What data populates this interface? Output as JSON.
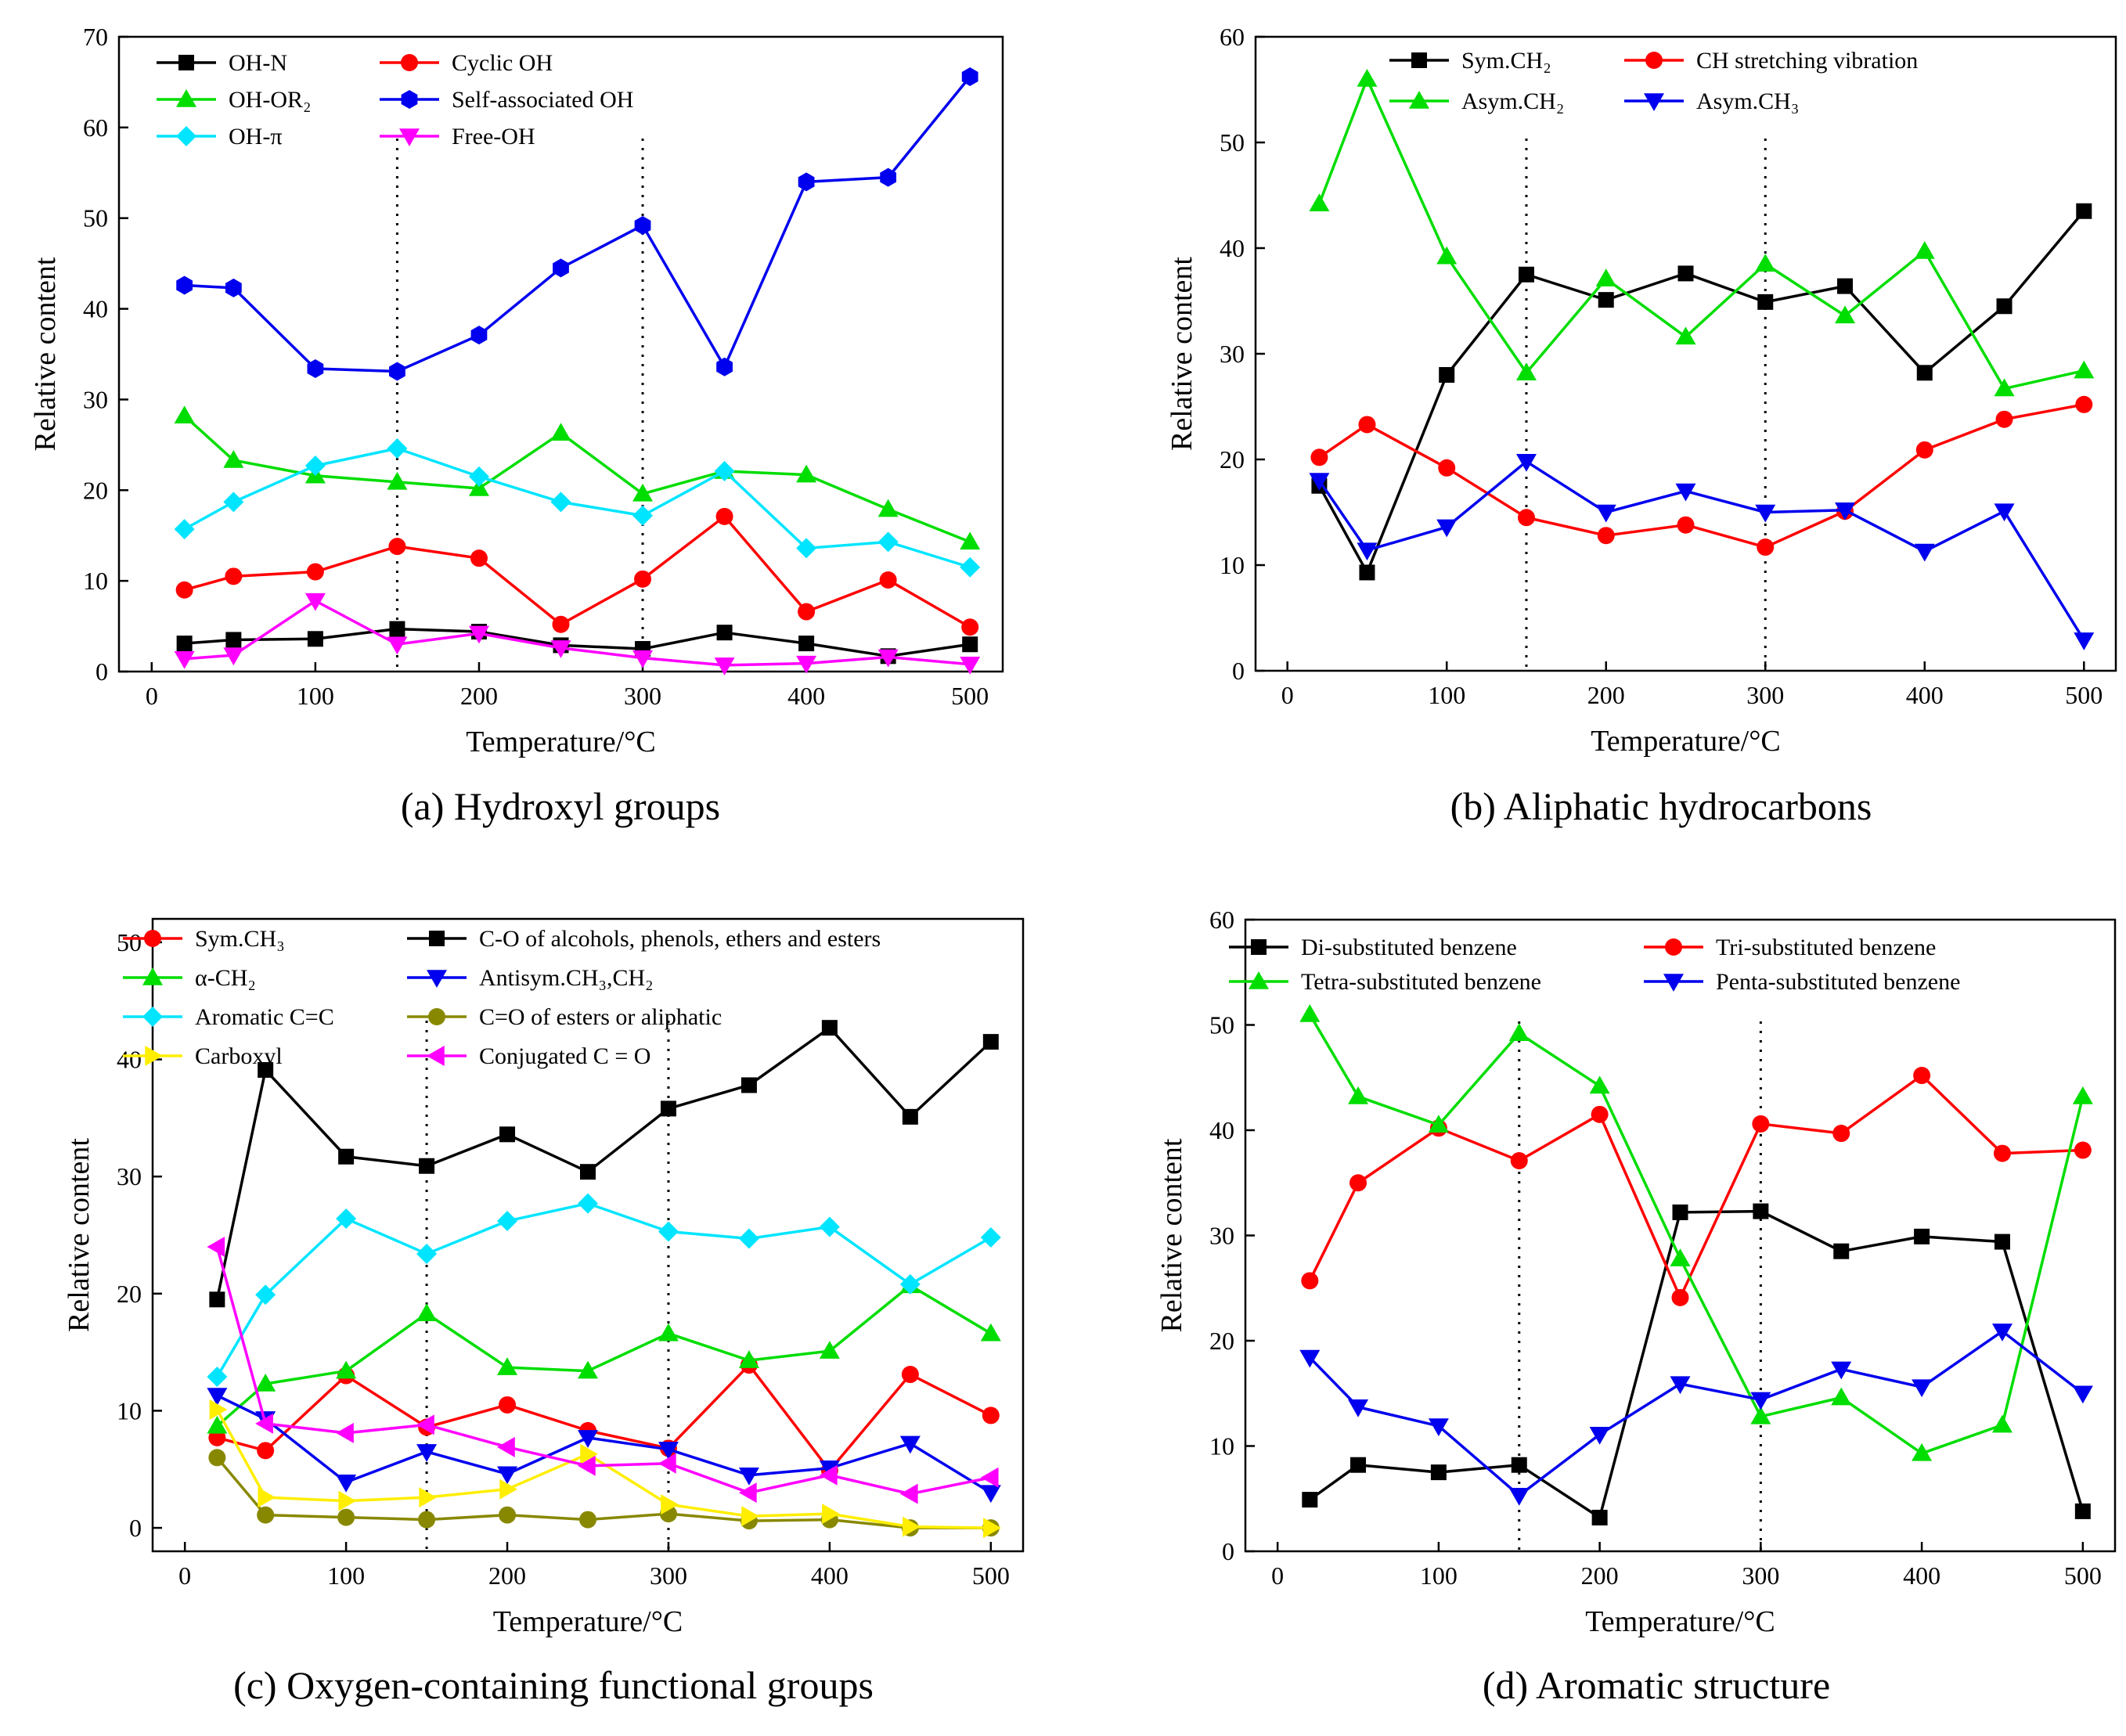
{
  "chart_data": [
    {
      "type": "line",
      "caption": "(a) Hydroxyl groups",
      "xlabel": "Temperature/°C",
      "ylabel": "Relative content",
      "xlim": [
        -20,
        520
      ],
      "ylim": [
        0,
        70
      ],
      "xticks": [
        0,
        100,
        200,
        300,
        400,
        500
      ],
      "yticks": [
        0,
        10,
        20,
        30,
        40,
        50,
        60,
        70
      ],
      "vlines": [
        150,
        300
      ],
      "legend_columns": 2,
      "x": [
        20,
        50,
        100,
        150,
        200,
        250,
        300,
        350,
        400,
        450,
        500
      ],
      "series": [
        {
          "name": "OH-N",
          "color": "#000000",
          "marker": "square",
          "values": [
            3.1,
            3.5,
            3.6,
            4.7,
            4.4,
            2.9,
            2.5,
            4.3,
            3.1,
            1.7,
            3.0
          ]
        },
        {
          "name": "Cyclic OH",
          "color": "#ff0000",
          "marker": "circle",
          "values": [
            9.0,
            10.5,
            11.0,
            13.8,
            12.5,
            5.2,
            10.2,
            17.1,
            6.6,
            10.1,
            4.9
          ]
        },
        {
          "name": "OH-OR₂",
          "color": "#00dd00",
          "marker": "triangle-up",
          "values": [
            28.2,
            23.3,
            21.6,
            20.9,
            20.2,
            26.3,
            19.6,
            22.1,
            21.7,
            17.9,
            14.3
          ]
        },
        {
          "name": "Self-associated OH",
          "color": "#0000ee",
          "marker": "hexagon",
          "values": [
            42.6,
            42.3,
            33.4,
            33.1,
            37.1,
            44.5,
            49.2,
            33.6,
            54.0,
            54.5,
            65.6
          ]
        },
        {
          "name": "OH-π",
          "color": "#00e5ff",
          "marker": "diamond",
          "values": [
            15.7,
            18.7,
            22.7,
            24.6,
            21.5,
            18.7,
            17.2,
            22.1,
            13.6,
            14.3,
            11.5
          ]
        },
        {
          "name": "Free-OH",
          "color": "#ff00ff",
          "marker": "triangle-down",
          "values": [
            1.4,
            1.8,
            7.8,
            3.0,
            4.2,
            2.6,
            1.5,
            0.7,
            0.9,
            1.6,
            0.8
          ]
        }
      ]
    },
    {
      "type": "line",
      "caption": "(b) Aliphatic hydrocarbons",
      "xlabel": "Temperature/°C",
      "ylabel": "Relative content",
      "xlim": [
        -20,
        520
      ],
      "ylim": [
        0,
        60
      ],
      "xticks": [
        0,
        100,
        200,
        300,
        400,
        500
      ],
      "yticks": [
        0,
        10,
        20,
        30,
        40,
        50,
        60
      ],
      "vlines": [
        150,
        300
      ],
      "legend_columns": 2,
      "x": [
        20,
        50,
        100,
        150,
        200,
        250,
        300,
        350,
        400,
        450,
        500
      ],
      "series": [
        {
          "name": "Sym.CH₂",
          "color": "#000000",
          "marker": "square",
          "values": [
            17.5,
            9.3,
            28.0,
            37.5,
            35.1,
            37.6,
            34.9,
            36.4,
            28.2,
            34.5,
            43.5
          ]
        },
        {
          "name": "CH stretching vibration",
          "color": "#ff0000",
          "marker": "circle",
          "values": [
            20.2,
            23.3,
            19.2,
            14.5,
            12.8,
            13.8,
            11.7,
            15.1,
            20.9,
            23.8,
            25.2
          ]
        },
        {
          "name": "Asym.CH₂",
          "color": "#00dd00",
          "marker": "triangle-up",
          "values": [
            44.2,
            56.0,
            39.2,
            28.2,
            37.1,
            31.6,
            38.5,
            33.6,
            39.7,
            26.7,
            28.4
          ]
        },
        {
          "name": "Asym.CH₃",
          "color": "#0000ee",
          "marker": "triangle-down",
          "values": [
            18.0,
            11.4,
            13.6,
            19.8,
            15.0,
            17.0,
            15.0,
            15.2,
            11.3,
            15.1,
            2.9
          ]
        }
      ]
    },
    {
      "type": "line",
      "caption": "(c) Oxygen-containing functional groups",
      "xlabel": "Temperature/°C",
      "ylabel": "Relative content",
      "xlim": [
        -20,
        520
      ],
      "ylim": [
        -2,
        52
      ],
      "xticks": [
        0,
        100,
        200,
        300,
        400,
        500
      ],
      "yticks": [
        0,
        10,
        20,
        30,
        40,
        50
      ],
      "vlines": [
        150,
        300
      ],
      "legend_columns": 2,
      "x": [
        20,
        50,
        100,
        150,
        200,
        250,
        300,
        350,
        400,
        450,
        500
      ],
      "series": [
        {
          "name": "Sym.CH₃",
          "color": "#ff0000",
          "marker": "circle",
          "values": [
            7.7,
            6.6,
            13.0,
            8.6,
            10.5,
            8.3,
            6.8,
            13.9,
            4.9,
            13.1,
            9.6
          ]
        },
        {
          "name": "C-O of alcohols, phenols, ethers and esters",
          "color": "#000000",
          "marker": "square",
          "values": [
            19.5,
            39.1,
            31.7,
            30.9,
            33.6,
            30.4,
            35.8,
            37.8,
            42.7,
            35.1,
            41.5
          ]
        },
        {
          "name": "α-CH₂",
          "color": "#00dd00",
          "marker": "triangle-up",
          "values": [
            8.7,
            12.3,
            13.4,
            18.3,
            13.7,
            13.4,
            16.6,
            14.3,
            15.1,
            20.7,
            16.6
          ]
        },
        {
          "name": "Antisym.CH₃,CH₂",
          "color": "#0000ee",
          "marker": "triangle-down",
          "values": [
            11.3,
            9.3,
            3.9,
            6.5,
            4.6,
            7.7,
            6.7,
            4.5,
            5.1,
            7.2,
            3.0
          ]
        },
        {
          "name": "Aromatic C=C",
          "color": "#00e5ff",
          "marker": "diamond",
          "values": [
            12.9,
            19.9,
            26.4,
            23.4,
            26.2,
            27.7,
            25.3,
            24.7,
            25.7,
            20.8,
            24.8
          ]
        },
        {
          "name": "C=O of esters or aliphatic",
          "color": "#888800",
          "marker": "circle",
          "values": [
            6.0,
            1.1,
            0.9,
            0.7,
            1.1,
            0.7,
            1.2,
            0.6,
            0.7,
            0.0,
            0.0
          ]
        },
        {
          "name": "Carboxyl",
          "color": "#ffee00",
          "marker": "triangle-right",
          "values": [
            10.1,
            2.6,
            2.3,
            2.6,
            3.3,
            6.3,
            2.0,
            1.0,
            1.2,
            0.1,
            0.0
          ]
        },
        {
          "name": "Conjugated C = O",
          "color": "#ff00ff",
          "marker": "triangle-left",
          "values": [
            24.0,
            8.9,
            8.1,
            8.8,
            6.9,
            5.3,
            5.5,
            3.0,
            4.5,
            2.9,
            4.3
          ]
        }
      ]
    },
    {
      "type": "line",
      "caption": "(d) Aromatic structure",
      "xlabel": "Temperature/°C",
      "ylabel": "Relative content",
      "xlim": [
        -20,
        520
      ],
      "ylim": [
        0,
        60
      ],
      "xticks": [
        0,
        100,
        200,
        300,
        400,
        500
      ],
      "yticks": [
        0,
        10,
        20,
        30,
        40,
        50,
        60
      ],
      "vlines": [
        150,
        300
      ],
      "legend_columns": 2,
      "x": [
        20,
        50,
        100,
        150,
        200,
        250,
        300,
        350,
        400,
        450,
        500
      ],
      "series": [
        {
          "name": "Di-substituted benzene",
          "color": "#000000",
          "marker": "square",
          "values": [
            4.9,
            8.2,
            7.5,
            8.2,
            3.2,
            32.2,
            32.3,
            28.5,
            29.9,
            29.4,
            3.8
          ]
        },
        {
          "name": "Tri-substituted benzene",
          "color": "#ff0000",
          "marker": "circle",
          "values": [
            25.7,
            35.0,
            40.2,
            37.1,
            41.5,
            24.1,
            40.6,
            39.7,
            45.2,
            37.8,
            38.1
          ]
        },
        {
          "name": "Tetra-substituted benzene",
          "color": "#00dd00",
          "marker": "triangle-up",
          "values": [
            51.0,
            43.2,
            40.5,
            49.2,
            44.2,
            27.8,
            12.8,
            14.6,
            9.3,
            12.0,
            43.2
          ]
        },
        {
          "name": "Penta-substituted benzene",
          "color": "#0000ee",
          "marker": "triangle-down",
          "values": [
            18.4,
            13.7,
            11.9,
            5.3,
            11.1,
            15.9,
            14.4,
            17.3,
            15.6,
            20.9,
            15.0
          ]
        }
      ]
    }
  ]
}
